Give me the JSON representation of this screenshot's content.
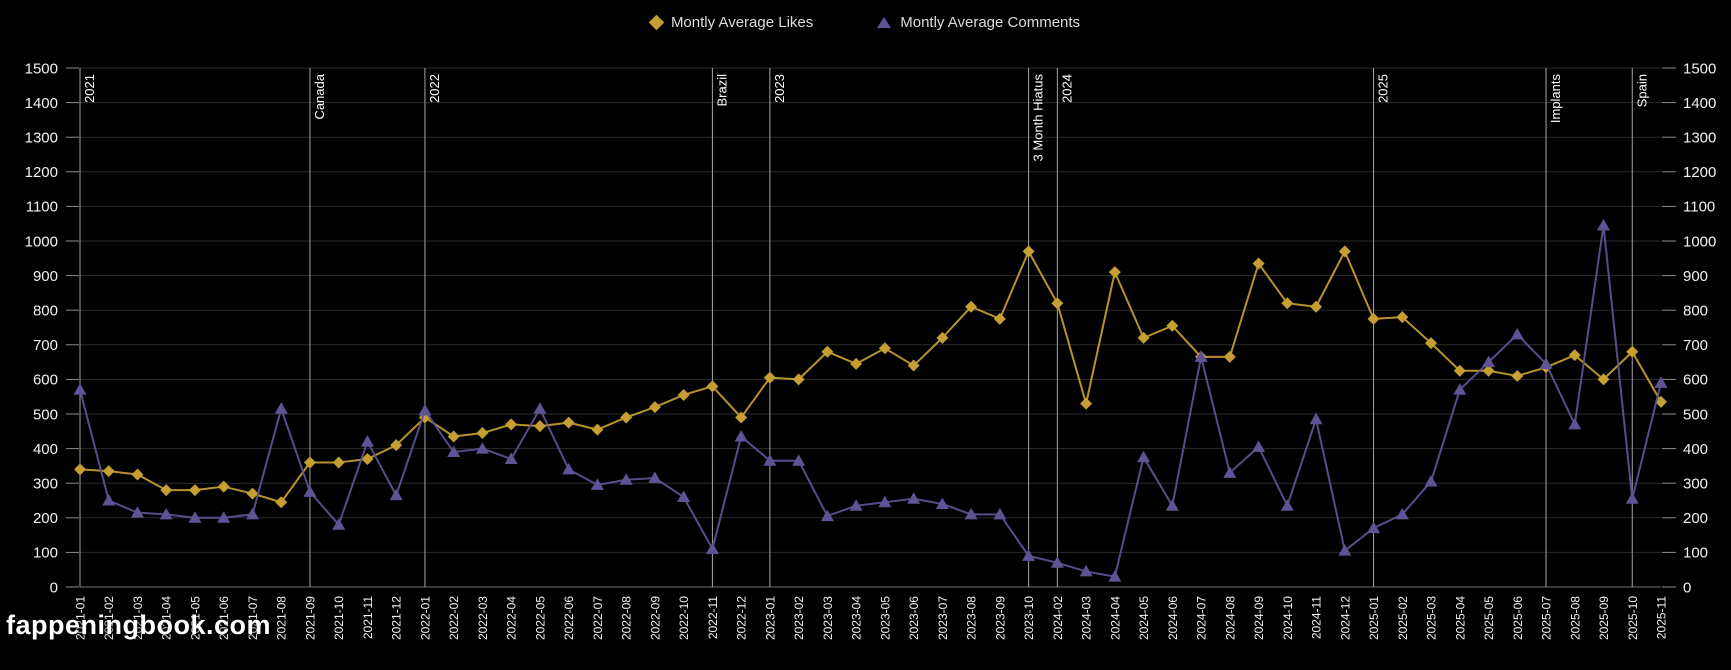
{
  "legend": {
    "likes_label": "Montly Average Likes",
    "comments_label": "Montly Average Comments"
  },
  "watermark": "fappeningbook.com",
  "colors": {
    "background": "#000000",
    "likes": "#C59F31",
    "comments": "#5F5396",
    "grid": "#2B2B2B",
    "zero_line": "#6E6E6E",
    "tick": "#8F8F8F",
    "annotation_line": "#A5A5A5",
    "axis_text": "#F2F2F2",
    "annotation_text": "#FFFFFF"
  },
  "chart_data": {
    "type": "line",
    "title": "",
    "xlabel": "",
    "ylabel": "",
    "ylim": [
      0,
      1500
    ],
    "ytick_step": 100,
    "grid": "horizontal",
    "legend_position": "top-center",
    "x": [
      "2021-01",
      "2021-02",
      "2021-03",
      "2021-04",
      "2021-05",
      "2021-06",
      "2021-07",
      "2021-08",
      "2021-09",
      "2021-10",
      "2021-11",
      "2021-12",
      "2022-01",
      "2022-02",
      "2022-03",
      "2022-04",
      "2022-05",
      "2022-06",
      "2022-07",
      "2022-08",
      "2022-09",
      "2022-10",
      "2022-11",
      "2022-12",
      "2023-01",
      "2023-02",
      "2023-03",
      "2023-04",
      "2023-05",
      "2023-06",
      "2023-07",
      "2023-08",
      "2023-09",
      "2023-10",
      "2024-02",
      "2024-03",
      "2024-04",
      "2024-05",
      "2024-06",
      "2024-07",
      "2024-08",
      "2024-09",
      "2024-10",
      "2024-11",
      "2024-12",
      "2025-01",
      "2025-02",
      "2025-03",
      "2025-04",
      "2025-05",
      "2025-06",
      "2025-07",
      "2025-08",
      "2025-09",
      "2025-10",
      "2025-11"
    ],
    "series": [
      {
        "name": "Montly Average Likes",
        "marker": "diamond",
        "color": "#C59F31",
        "values": [
          340,
          335,
          325,
          280,
          280,
          290,
          270,
          245,
          360,
          360,
          370,
          410,
          490,
          435,
          445,
          470,
          465,
          475,
          455,
          490,
          520,
          555,
          580,
          490,
          605,
          600,
          680,
          645,
          690,
          640,
          720,
          810,
          775,
          970,
          820,
          530,
          910,
          720,
          755,
          665,
          665,
          935,
          820,
          810,
          970,
          775,
          780,
          705,
          625,
          625,
          610,
          635,
          670,
          600,
          680,
          535
        ]
      },
      {
        "name": "Montly Average Comments",
        "marker": "triangle",
        "color": "#5F5396",
        "values": [
          570,
          250,
          215,
          210,
          200,
          200,
          210,
          515,
          275,
          180,
          420,
          265,
          510,
          390,
          400,
          370,
          515,
          340,
          295,
          310,
          315,
          260,
          110,
          435,
          365,
          365,
          205,
          235,
          245,
          255,
          240,
          210,
          210,
          90,
          70,
          45,
          30,
          375,
          235,
          665,
          330,
          405,
          235,
          485,
          105,
          170,
          210,
          305,
          570,
          650,
          730,
          645,
          470,
          1045,
          255,
          590
        ]
      }
    ],
    "annotations": [
      {
        "label": "2021",
        "month": "2021-01"
      },
      {
        "label": "Canada",
        "month": "2021-09"
      },
      {
        "label": "2022",
        "month": "2022-01"
      },
      {
        "label": "Brazil",
        "month": "2022-11"
      },
      {
        "label": "2023",
        "month": "2023-01"
      },
      {
        "label": "3 Month Hiatus",
        "month": "2023-10"
      },
      {
        "label": "2024",
        "month": "2024-02"
      },
      {
        "label": "2025",
        "month": "2025-01"
      },
      {
        "label": "Implants",
        "month": "2025-07"
      },
      {
        "label": "Spain",
        "month": "2025-10"
      }
    ]
  }
}
